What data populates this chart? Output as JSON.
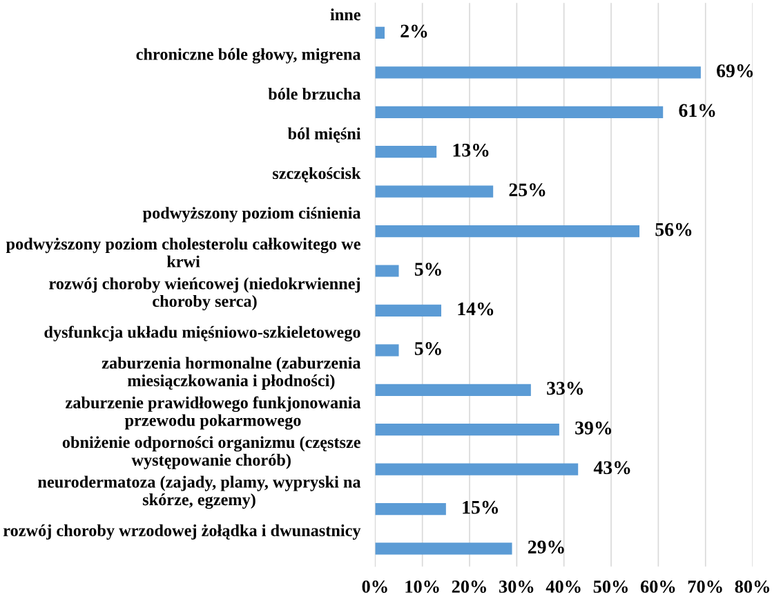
{
  "chart_data": {
    "type": "bar",
    "orientation": "horizontal",
    "grid": "x",
    "categories": [
      "inne",
      "chroniczne bóle głowy, migrena",
      "bóle brzucha",
      "ból mięśni",
      "szczękościsk",
      "podwyższony poziom ciśnienia",
      "podwyższony poziom cholesterolu całkowitego we krwi",
      "rozwój choroby wieńcowej (niedokrwiennej choroby serca)",
      "dysfunkcja układu mięśniowo-szkieletowego",
      "zaburzenia hormonalne (zaburzenia miesiączkowania i płodności)",
      "zaburzenie prawidłowego funkjonowania przewodu pokarmowego",
      "obniżenie odporności organizmu (częstsze występowanie chorób)",
      "neurodermatoza (zajady, plamy, wypryski na skórze, egzemy)",
      "rozwój choroby wrzodowej żołądka i dwunastnicy"
    ],
    "values": [
      2,
      69,
      61,
      13,
      25,
      56,
      5,
      14,
      5,
      33,
      39,
      43,
      15,
      29
    ],
    "value_labels": [
      "2%",
      "69%",
      "61%",
      "13%",
      "25%",
      "56%",
      "5%",
      "14%",
      "5%",
      "33%",
      "39%",
      "43%",
      "15%",
      "29%"
    ],
    "color": "#5b9bd5",
    "xlim": [
      0,
      80
    ],
    "xticks": [
      {
        "value": 0,
        "label": "0%"
      },
      {
        "value": 10,
        "label": "10%"
      },
      {
        "value": 20,
        "label": "20%"
      },
      {
        "value": 30,
        "label": "30%"
      },
      {
        "value": 40,
        "label": "40%"
      },
      {
        "value": 50,
        "label": "50%"
      },
      {
        "value": 60,
        "label": "60%"
      },
      {
        "value": 70,
        "label": "70%"
      },
      {
        "value": 80,
        "label": "80%"
      }
    ]
  }
}
